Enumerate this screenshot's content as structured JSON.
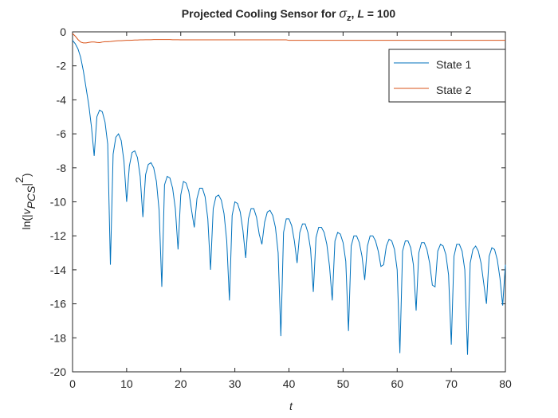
{
  "chart_data": {
    "type": "line",
    "title": [
      "Projected Cooling Sensor for ",
      "σ",
      "z",
      ", ",
      "L",
      " = 100"
    ],
    "x_label": "t",
    "y_label": [
      "ln(|",
      "v",
      "PCS",
      "|",
      "2",
      ")"
    ],
    "xlim": [
      0,
      80
    ],
    "xticks": [
      0,
      10,
      20,
      30,
      40,
      50,
      60,
      70,
      80
    ],
    "ylim": [
      -20,
      0
    ],
    "yticks": [
      0,
      -2,
      -4,
      -6,
      -8,
      -10,
      -12,
      -14,
      -16,
      -18,
      -20
    ],
    "legend": "northeast",
    "grid": false,
    "x": [
      0,
      0.5,
      1,
      1.5,
      2,
      2.5,
      3,
      3.5,
      4,
      4.5,
      5,
      5.5,
      6,
      6.5,
      7,
      7.5,
      8,
      8.5,
      9,
      9.5,
      10,
      10.5,
      11,
      11.5,
      12,
      12.5,
      13,
      13.5,
      14,
      14.5,
      15,
      15.5,
      16,
      16.5,
      17,
      17.5,
      18,
      18.5,
      19,
      19.5,
      20,
      20.5,
      21,
      21.5,
      22,
      22.5,
      23,
      23.5,
      24,
      24.5,
      25,
      25.5,
      26,
      26.5,
      27,
      27.5,
      28,
      28.5,
      29,
      29.5,
      30,
      30.5,
      31,
      31.5,
      32,
      32.5,
      33,
      33.5,
      34,
      34.5,
      35,
      35.5,
      36,
      36.5,
      37,
      37.5,
      38,
      38.5,
      39,
      39.5,
      40,
      40.5,
      41,
      41.5,
      42,
      42.5,
      43,
      43.5,
      44,
      44.5,
      45,
      45.5,
      46,
      46.5,
      47,
      47.5,
      48,
      48.5,
      49,
      49.5,
      50,
      50.5,
      51,
      51.5,
      52,
      52.5,
      53,
      53.5,
      54,
      54.5,
      55,
      55.5,
      56,
      56.5,
      57,
      57.5,
      58,
      58.5,
      59,
      59.5,
      60,
      60.5,
      61,
      61.5,
      62,
      62.5,
      63,
      63.5,
      64,
      64.5,
      65,
      65.5,
      66,
      66.5,
      67,
      67.5,
      68,
      68.5,
      69,
      69.5,
      70,
      70.5,
      71,
      71.5,
      72,
      72.5,
      73,
      73.5,
      74,
      74.5,
      75,
      75.5,
      76,
      76.5,
      77,
      77.5,
      78,
      78.5,
      79,
      79.5,
      80
    ],
    "series": [
      {
        "name": "State 1",
        "color": "#0072BD",
        "values": [
          -0.5,
          -0.7,
          -1.0,
          -1.5,
          -2.3,
          -3.3,
          -4.3,
          -5.6,
          -7.3,
          -5.0,
          -4.6,
          -4.7,
          -5.3,
          -6.6,
          -13.7,
          -7.2,
          -6.2,
          -6.0,
          -6.4,
          -7.6,
          -10.0,
          -7.9,
          -7.1,
          -7.0,
          -7.4,
          -8.5,
          -10.9,
          -8.4,
          -7.8,
          -7.7,
          -8.0,
          -8.8,
          -10.5,
          -15.0,
          -9.0,
          -8.5,
          -8.6,
          -9.2,
          -10.4,
          -12.8,
          -9.6,
          -8.8,
          -8.9,
          -9.4,
          -10.5,
          -11.5,
          -9.8,
          -9.2,
          -9.2,
          -9.7,
          -11.0,
          -14.0,
          -10.4,
          -9.7,
          -9.6,
          -9.9,
          -10.7,
          -12.3,
          -15.8,
          -10.8,
          -10.0,
          -10.1,
          -10.6,
          -11.7,
          -13.3,
          -11.0,
          -10.4,
          -10.4,
          -10.9,
          -11.9,
          -12.5,
          -11.2,
          -10.6,
          -10.5,
          -10.8,
          -11.5,
          -13.0,
          -17.9,
          -11.8,
          -11.0,
          -11.0,
          -11.4,
          -12.3,
          -13.6,
          -11.8,
          -11.3,
          -11.3,
          -11.8,
          -12.8,
          -15.3,
          -12.1,
          -11.5,
          -11.5,
          -11.8,
          -12.5,
          -13.8,
          -15.8,
          -12.3,
          -11.8,
          -11.9,
          -12.4,
          -13.5,
          -17.6,
          -12.6,
          -12.0,
          -12.0,
          -12.4,
          -13.2,
          -14.6,
          -12.6,
          -12.0,
          -12.0,
          -12.3,
          -12.9,
          -13.8,
          -13.7,
          -12.6,
          -12.2,
          -12.3,
          -12.8,
          -14.0,
          -18.9,
          -12.9,
          -12.3,
          -12.3,
          -12.7,
          -13.7,
          -16.4,
          -13.0,
          -12.4,
          -12.4,
          -12.8,
          -13.6,
          -14.9,
          -15.0,
          -12.9,
          -12.5,
          -12.6,
          -13.1,
          -14.3,
          -18.4,
          -13.2,
          -12.5,
          -12.5,
          -12.9,
          -14.0,
          -19.0,
          -13.6,
          -12.8,
          -12.6,
          -12.9,
          -13.6,
          -14.8,
          -16.0,
          -13.2,
          -12.7,
          -12.8,
          -13.4,
          -14.5,
          -16.1,
          -13.7
        ]
      },
      {
        "name": "State 2",
        "color": "#D95319",
        "values": [
          -0.1,
          -0.25,
          -0.45,
          -0.6,
          -0.65,
          -0.65,
          -0.62,
          -0.6,
          -0.6,
          -0.62,
          -0.63,
          -0.6,
          -0.58,
          -0.58,
          -0.57,
          -0.55,
          -0.53,
          -0.52,
          -0.52,
          -0.51,
          -0.5,
          -0.5,
          -0.49,
          -0.48,
          -0.48,
          -0.47,
          -0.47,
          -0.46,
          -0.46,
          -0.46,
          -0.45,
          -0.45,
          -0.45,
          -0.45,
          -0.45,
          -0.45,
          -0.45,
          -0.46,
          -0.46,
          -0.46,
          -0.47,
          -0.47,
          -0.47,
          -0.47,
          -0.47,
          -0.47,
          -0.47,
          -0.47,
          -0.47,
          -0.47,
          -0.47,
          -0.47,
          -0.47,
          -0.47,
          -0.47,
          -0.47,
          -0.47,
          -0.47,
          -0.47,
          -0.47,
          -0.47,
          -0.47,
          -0.47,
          -0.47,
          -0.47,
          -0.47,
          -0.47,
          -0.47,
          -0.47,
          -0.47,
          -0.47,
          -0.47,
          -0.47,
          -0.47,
          -0.47,
          -0.47,
          -0.47,
          -0.47,
          -0.47,
          -0.47,
          -0.5,
          -0.5,
          -0.5,
          -0.5,
          -0.5,
          -0.5,
          -0.5,
          -0.5,
          -0.5,
          -0.5,
          -0.5,
          -0.5,
          -0.5,
          -0.5,
          -0.5,
          -0.5,
          -0.5,
          -0.5,
          -0.5,
          -0.5,
          -0.5,
          -0.5,
          -0.5,
          -0.5,
          -0.5,
          -0.5,
          -0.5,
          -0.5,
          -0.5,
          -0.5,
          -0.5,
          -0.5,
          -0.5,
          -0.5,
          -0.5,
          -0.5,
          -0.5,
          -0.5,
          -0.5,
          -0.5,
          -0.5,
          -0.5,
          -0.5,
          -0.5,
          -0.5,
          -0.5,
          -0.5,
          -0.5,
          -0.5,
          -0.5,
          -0.5,
          -0.5,
          -0.5,
          -0.5,
          -0.5,
          -0.5,
          -0.5,
          -0.5,
          -0.5,
          -0.5,
          -0.5,
          -0.5,
          -0.5,
          -0.5,
          -0.5,
          -0.5,
          -0.5,
          -0.5,
          -0.5,
          -0.5,
          -0.5,
          -0.5,
          -0.5,
          -0.5,
          -0.5,
          -0.5,
          -0.5,
          -0.5,
          -0.5,
          -0.5,
          -0.5
        ]
      }
    ]
  }
}
